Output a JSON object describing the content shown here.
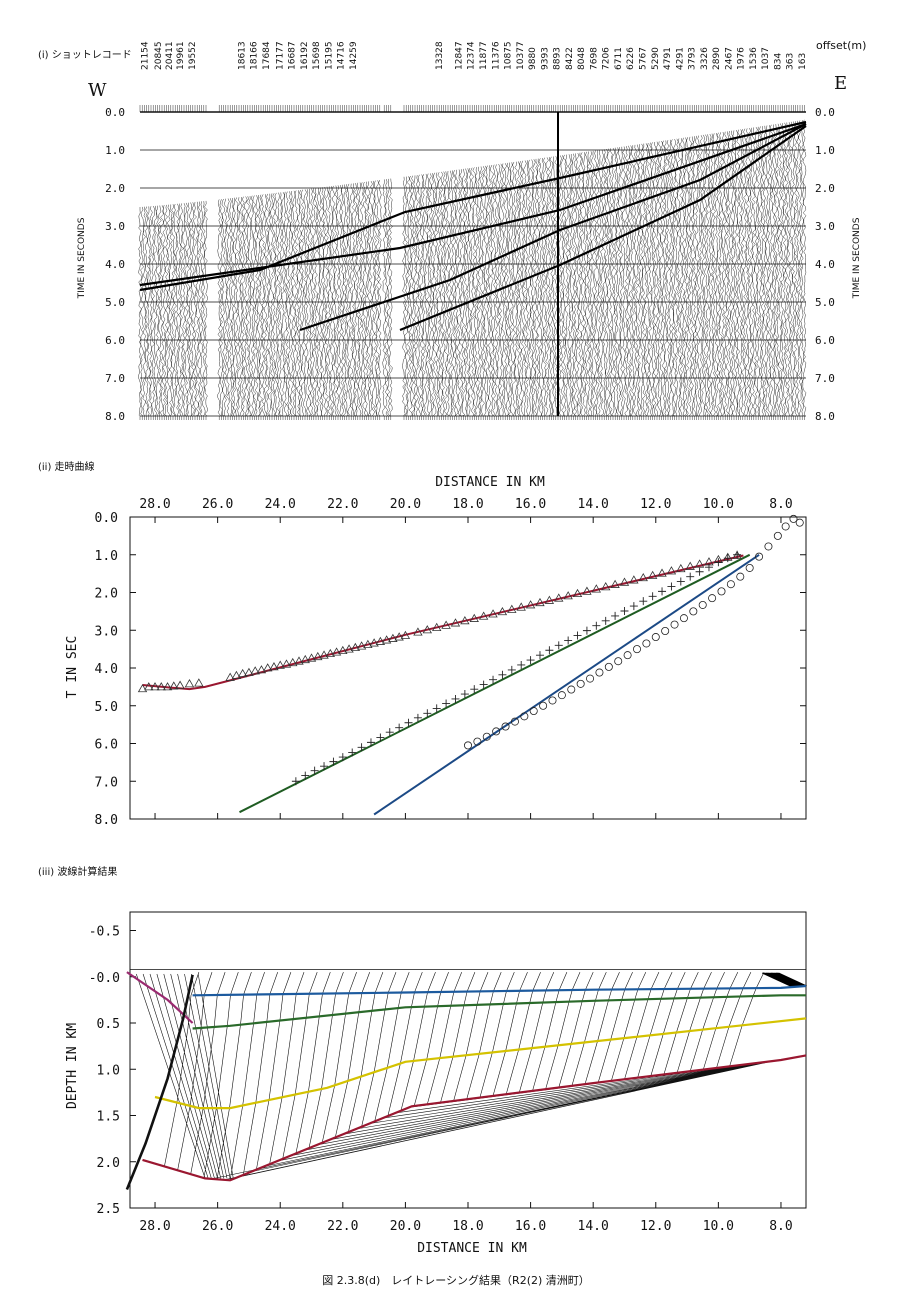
{
  "page": {
    "caption": "図 2.3.8(d)　レイトレーシング結果（R2(2) 清洲町）"
  },
  "shot": {
    "panel_label": "(i)  ショットレコード",
    "west": "W",
    "east": "E",
    "offset_label": "offset(m)",
    "axis_label": "TIME IN SECONDS",
    "offsets": [
      "21154",
      "20845",
      "20411",
      "19961",
      "19552",
      "18613",
      "18166",
      "17684",
      "17177",
      "16687",
      "16192",
      "15698",
      "15195",
      "14716",
      "14259",
      "13328",
      "12847",
      "12374",
      "11877",
      "11376",
      "10875",
      "10377",
      "9880",
      "9393",
      "8893",
      "8422",
      "8048",
      "7698",
      "7206",
      "6711",
      "6226",
      "5767",
      "5290",
      "4791",
      "4291",
      "3793",
      "3326",
      "2890",
      "2467",
      "1976",
      "1536",
      "1037",
      "834",
      "363",
      "163"
    ],
    "time_ticks": [
      "0.0",
      "1.0",
      "2.0",
      "3.0",
      "4.0",
      "5.0",
      "6.0",
      "7.0",
      "8.0"
    ]
  },
  "chart_data": [
    {
      "type": "scatter",
      "panel_label": "(ii)  走時曲線",
      "xlabel": "DISTANCE IN KM",
      "ylabel": "T IN SEC",
      "xlim": [
        28.8,
        7.2
      ],
      "ylim": [
        0,
        8
      ],
      "x_ticks": [
        "28.0",
        "26.0",
        "24.0",
        "22.0",
        "20.0",
        "18.0",
        "16.0",
        "14.0",
        "12.0",
        "10.0",
        "8.0"
      ],
      "y_ticks": [
        "0.0",
        "1.0",
        "2.0",
        "3.0",
        "4.0",
        "5.0",
        "6.0",
        "7.0",
        "8.0"
      ],
      "series": [
        {
          "kind": "line",
          "color": "#9a1730",
          "x": [
            28.4,
            27.5,
            26.9,
            26.4,
            20.0,
            9.2
          ],
          "y": [
            4.45,
            4.52,
            4.56,
            4.5,
            3.12,
            1.02
          ]
        },
        {
          "kind": "line",
          "color": "#1f5c22",
          "x": [
            25.3,
            9.0
          ],
          "y": [
            7.82,
            1.0
          ]
        },
        {
          "kind": "line",
          "color": "#1c4a86",
          "x": [
            21.0,
            8.7
          ],
          "y": [
            7.88,
            1.0
          ]
        },
        {
          "kind": "points",
          "marker": "triangle",
          "x": [
            28.4,
            28.2,
            28.0,
            27.8,
            27.6,
            27.4,
            27.2,
            26.9,
            26.6,
            25.6,
            25.4,
            25.2,
            25.0,
            24.8,
            24.6,
            24.4,
            24.2,
            24.0,
            23.8,
            23.6,
            23.4,
            23.2,
            23.0,
            22.8,
            22.6,
            22.4,
            22.2,
            22.0,
            21.8,
            21.6,
            21.4,
            21.2,
            21.0,
            20.8,
            20.6,
            20.4,
            20.2,
            20.0,
            19.6,
            19.3,
            19.0,
            18.7,
            18.4,
            18.1,
            17.8,
            17.5,
            17.2,
            16.9,
            16.6,
            16.3,
            16.0,
            15.7,
            15.4,
            15.1,
            14.8,
            14.5,
            14.2,
            13.9,
            13.6,
            13.3,
            13.0,
            12.7,
            12.4,
            12.1,
            11.8,
            11.5,
            11.2,
            10.9,
            10.6,
            10.3,
            10.0,
            9.7,
            9.4
          ],
          "y": [
            4.55,
            4.5,
            4.5,
            4.5,
            4.5,
            4.48,
            4.46,
            4.42,
            4.4,
            4.25,
            4.2,
            4.15,
            4.12,
            4.08,
            4.05,
            4.0,
            3.97,
            3.93,
            3.9,
            3.86,
            3.82,
            3.78,
            3.74,
            3.7,
            3.66,
            3.62,
            3.58,
            3.54,
            3.5,
            3.46,
            3.42,
            3.38,
            3.34,
            3.3,
            3.26,
            3.22,
            3.18,
            3.14,
            3.05,
            2.99,
            2.93,
            2.87,
            2.81,
            2.75,
            2.69,
            2.63,
            2.57,
            2.51,
            2.45,
            2.39,
            2.33,
            2.27,
            2.21,
            2.15,
            2.09,
            2.03,
            1.97,
            1.91,
            1.85,
            1.79,
            1.73,
            1.67,
            1.61,
            1.55,
            1.49,
            1.43,
            1.37,
            1.31,
            1.25,
            1.19,
            1.13,
            1.07,
            1.02
          ]
        },
        {
          "kind": "points",
          "marker": "plus",
          "x": [
            23.5,
            23.2,
            22.9,
            22.6,
            22.3,
            22.0,
            21.7,
            21.4,
            21.1,
            20.8,
            20.5,
            20.2,
            19.9,
            19.6,
            19.3,
            19.0,
            18.7,
            18.4,
            18.1,
            17.8,
            17.5,
            17.2,
            16.9,
            16.6,
            16.3,
            16.0,
            15.7,
            15.4,
            15.1,
            14.8,
            14.5,
            14.2,
            13.9,
            13.6,
            13.3,
            13.0,
            12.7,
            12.4,
            12.1,
            11.8,
            11.5,
            11.2,
            10.9,
            10.6,
            10.3,
            10.0,
            9.7,
            9.4
          ],
          "y": [
            7.0,
            6.85,
            6.72,
            6.6,
            6.48,
            6.36,
            6.24,
            6.1,
            5.97,
            5.84,
            5.7,
            5.58,
            5.45,
            5.32,
            5.2,
            5.07,
            4.94,
            4.82,
            4.69,
            4.56,
            4.44,
            4.31,
            4.18,
            4.05,
            3.92,
            3.79,
            3.66,
            3.53,
            3.4,
            3.27,
            3.14,
            3.01,
            2.88,
            2.75,
            2.62,
            2.49,
            2.36,
            2.23,
            2.1,
            1.97,
            1.84,
            1.71,
            1.58,
            1.45,
            1.33,
            1.2,
            1.09,
            1.0
          ]
        },
        {
          "kind": "points",
          "marker": "circle",
          "x": [
            18.0,
            17.7,
            17.4,
            17.1,
            16.8,
            16.5,
            16.2,
            15.9,
            15.6,
            15.3,
            15.0,
            14.7,
            14.4,
            14.1,
            13.8,
            13.5,
            13.2,
            12.9,
            12.6,
            12.3,
            12.0,
            11.7,
            11.4,
            11.1,
            10.8,
            10.5,
            10.2,
            9.9,
            9.6,
            9.3,
            9.0,
            8.7,
            8.4,
            8.1,
            7.85,
            7.6,
            7.4
          ],
          "y": [
            6.05,
            5.95,
            5.82,
            5.68,
            5.55,
            5.42,
            5.28,
            5.14,
            5.0,
            4.86,
            4.72,
            4.57,
            4.42,
            4.28,
            4.12,
            3.97,
            3.82,
            3.66,
            3.5,
            3.35,
            3.18,
            3.02,
            2.85,
            2.68,
            2.5,
            2.33,
            2.15,
            1.97,
            1.78,
            1.58,
            1.35,
            1.05,
            0.78,
            0.5,
            0.25,
            0.05,
            0.15
          ]
        }
      ]
    },
    {
      "type": "line",
      "panel_label": "(iii)  波線計算結果",
      "xlabel": "DISTANCE IN KM",
      "ylabel": "DEPTH IN KM",
      "xlim": [
        28.8,
        7.2
      ],
      "ylim": [
        -0.7,
        2.5
      ],
      "x_ticks": [
        "28.0",
        "26.0",
        "24.0",
        "22.0",
        "20.0",
        "18.0",
        "16.0",
        "14.0",
        "12.0",
        "10.0",
        "8.0"
      ],
      "y_ticks": [
        "-0.5",
        "-0.0",
        "0.5",
        "1.0",
        "1.5",
        "2.0",
        "2.5"
      ],
      "layers": [
        {
          "color": "#1c5a9e",
          "x": [
            26.8,
            20.0,
            14.0,
            8.0,
            7.2
          ],
          "y": [
            0.2,
            0.17,
            0.14,
            0.12,
            0.1
          ]
        },
        {
          "color": "#2a6a2a",
          "x": [
            26.8,
            25.6,
            20.0,
            14.0,
            8.0,
            7.2
          ],
          "y": [
            0.56,
            0.53,
            0.33,
            0.26,
            0.2,
            0.2
          ]
        },
        {
          "color": "#d4c200",
          "x": [
            28.0,
            26.6,
            25.6,
            22.5,
            20.0,
            14.0,
            7.2
          ],
          "y": [
            1.3,
            1.42,
            1.42,
            1.2,
            0.92,
            0.7,
            0.45
          ]
        },
        {
          "color": "#9a1730",
          "x": [
            28.4,
            26.4,
            25.6,
            19.8,
            14.0,
            8.0,
            7.2
          ],
          "y": [
            1.98,
            2.18,
            2.2,
            1.4,
            1.15,
            0.9,
            0.85
          ]
        },
        {
          "color": "#9a2a70",
          "x": [
            28.9,
            27.6,
            26.8
          ],
          "y": [
            -0.05,
            0.25,
            0.5
          ]
        },
        {
          "color": "#111111",
          "x": [
            28.9,
            28.3,
            27.6,
            27.1,
            26.8
          ],
          "y": [
            2.3,
            1.8,
            1.1,
            0.45,
            -0.02
          ]
        }
      ]
    }
  ]
}
